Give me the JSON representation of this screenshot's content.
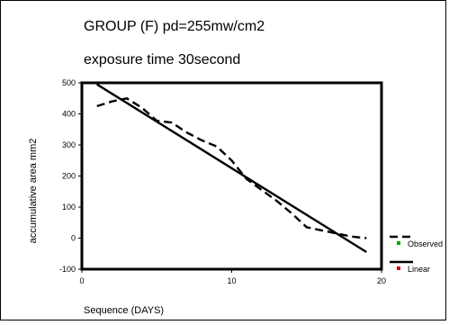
{
  "chart_data": {
    "type": "line",
    "title": "GROUP (F) pd=255mw/cm2",
    "subtitle": "exposure time 30second",
    "xlabel": "Sequence (DAYS)",
    "ylabel": "accumulative area mm2",
    "xlim": [
      0,
      20
    ],
    "ylim": [
      -100,
      500
    ],
    "xticks": [
      0,
      10,
      20
    ],
    "yticks": [
      -100,
      0,
      100,
      200,
      300,
      400,
      500
    ],
    "grid": false,
    "legend_position": "right",
    "series": [
      {
        "name": "Observed",
        "style": "dashed",
        "marker_color": "#00aa00",
        "x": [
          1,
          2,
          3,
          4,
          5,
          6,
          7,
          8,
          9,
          10,
          11,
          12,
          13,
          14,
          15,
          16,
          17,
          18,
          19
        ],
        "y": [
          425,
          440,
          450,
          420,
          378,
          372,
          340,
          315,
          295,
          250,
          190,
          155,
          120,
          80,
          35,
          25,
          15,
          5,
          0
        ]
      },
      {
        "name": "Linear",
        "style": "solid",
        "marker_color": "#cc0000",
        "x": [
          1,
          19
        ],
        "y": [
          495,
          -45
        ]
      }
    ]
  }
}
